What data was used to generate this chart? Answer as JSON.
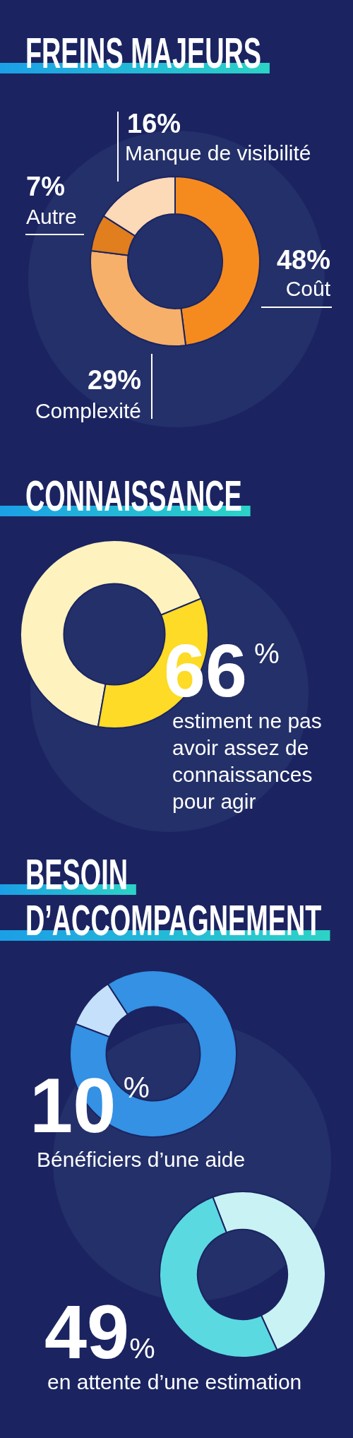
{
  "chart_data": [
    {
      "type": "donut",
      "title": "FREINS MAJEURS",
      "categories": [
        "Coût",
        "Complexité",
        "Autre",
        "Manque de visibilité"
      ],
      "values": [
        48,
        29,
        7,
        16
      ],
      "colors": [
        "#f58b1f",
        "#f7b06a",
        "#e17e1d",
        "#fcd9b7"
      ],
      "value_labels": [
        "48%",
        "29%",
        "7%",
        "16%"
      ]
    },
    {
      "type": "donut",
      "title": "CONNAISSANCE",
      "categories": [
        null,
        null
      ],
      "values": [
        66,
        34
      ],
      "colors": [
        "#fef2bf",
        "#fddb26"
      ],
      "value_labels": [
        "66$^{%}$",
        null
      ],
      "annotations": [
        "estiment ne pas avoir assez de connaissances pour agir"
      ]
    },
    {
      "type": "donut",
      "title": "BESOIN D’ACCOMPAGNEMENT",
      "categories": [
        null,
        null
      ],
      "values": [
        10,
        90
      ],
      "colors": [
        "#c5e0fa",
        "#3491e4"
      ],
      "annotations": [
        "10$^{%}$",
        "Bénéficiers d’une aide"
      ]
    },
    {
      "type": "donut",
      "categories": [
        null,
        null
      ],
      "values": [
        49,
        51
      ],
      "colors": [
        "#c9f2f5",
        "#5bd9e1"
      ],
      "annotations": [
        "49%",
        "en attente d’une estimation"
      ]
    }
  ]
}
